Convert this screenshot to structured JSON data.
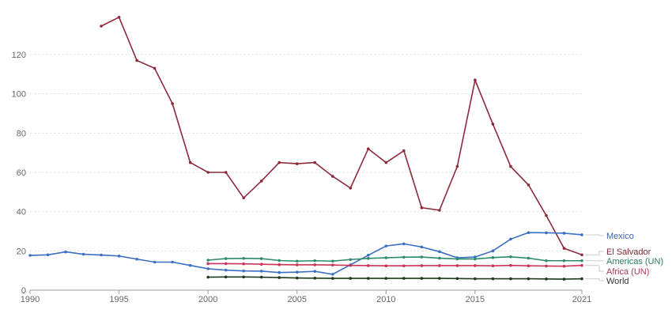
{
  "chart_data": {
    "type": "line",
    "title": "",
    "xlabel": "",
    "ylabel": "",
    "xlim": [
      1990,
      2021
    ],
    "ylim": [
      0,
      140
    ],
    "x_ticks": [
      "1990",
      "1995",
      "2000",
      "2005",
      "2010",
      "2015",
      "2021"
    ],
    "y_ticks": [
      "0",
      "20",
      "40",
      "60",
      "80",
      "100",
      "120"
    ],
    "grid": true,
    "legend_placement": "right, inline labels",
    "series": [
      {
        "name": "El Salvador",
        "color": "#8c2a3a",
        "start": 1994,
        "values": [
          134.5,
          139,
          117,
          113,
          95,
          65,
          60,
          60,
          47,
          55.6,
          65,
          64.4,
          65,
          58,
          52,
          72,
          65,
          71,
          42,
          40.7,
          63,
          107,
          84.6,
          63,
          53.6,
          38,
          21.3,
          18
        ]
      },
      {
        "name": "Mexico",
        "color": "#3b6fc4",
        "start": 1990,
        "values": [
          17.7,
          18,
          19.5,
          18.3,
          17.9,
          17.4,
          15.8,
          14.3,
          14.3,
          12.6,
          10.9,
          10.2,
          9.8,
          9.7,
          9,
          9.2,
          9.6,
          8.1,
          12.9,
          17.8,
          22.5,
          23.6,
          22,
          19.6,
          16.5,
          16.9,
          20,
          26,
          29.3,
          29.2,
          29,
          28.2
        ]
      },
      {
        "name": "Americas (UN)",
        "color": "#2e8b6a",
        "start": 2000,
        "values": [
          15.3,
          16.1,
          16.2,
          16.1,
          15.1,
          14.8,
          15,
          14.8,
          15.6,
          16.2,
          16.5,
          16.8,
          16.9,
          16.3,
          15.9,
          15.9,
          16.6,
          17,
          16.3,
          15,
          15,
          15
        ]
      },
      {
        "name": "Africa (UN)",
        "color": "#c9355a",
        "start": 2000,
        "values": [
          13.5,
          13.5,
          13.4,
          13.2,
          13,
          12.9,
          12.9,
          12.8,
          12.6,
          12.5,
          12.4,
          12.4,
          12.5,
          12.5,
          12.5,
          12.5,
          12.4,
          12.6,
          12.4,
          12.3,
          12.2,
          12.6
        ]
      },
      {
        "name": "World",
        "color": "#1f3a1f",
        "start": 2000,
        "values": [
          6.6,
          6.7,
          6.7,
          6.6,
          6.4,
          6.2,
          6.1,
          6,
          6,
          6,
          6,
          6,
          6,
          6,
          5.9,
          5.8,
          5.8,
          5.8,
          5.8,
          5.7,
          5.6,
          5.8
        ]
      }
    ]
  }
}
